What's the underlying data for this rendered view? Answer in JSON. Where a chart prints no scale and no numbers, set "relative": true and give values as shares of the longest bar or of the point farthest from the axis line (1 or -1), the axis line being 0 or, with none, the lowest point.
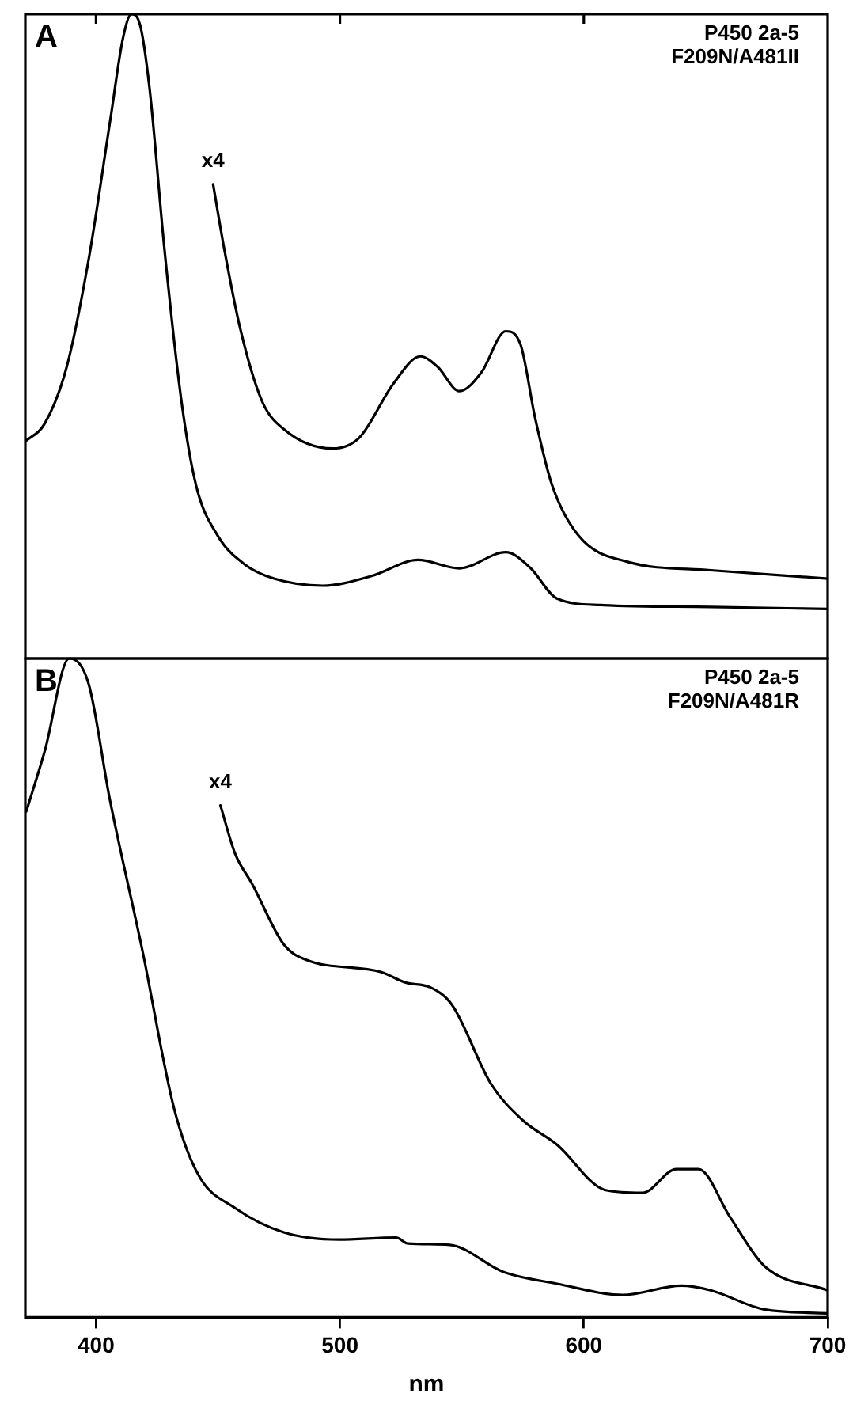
{
  "chart_data": [
    {
      "type": "line",
      "title": "A",
      "relative": true,
      "xlim": [
        371,
        700
      ],
      "xticks": [
        {
          "value": 400,
          "label": null
        },
        {
          "value": 500,
          "label": null
        },
        {
          "value": 600,
          "label": null
        }
      ],
      "tick_labels": false,
      "grid": false,
      "legend": false,
      "marker": "none",
      "line_style": "solid",
      "annotations": [
        "P450 2a-5\nF209N/A481II",
        {
          "text": "x4",
          "x": 448,
          "y": 0.736
        }
      ],
      "series": [
        {
          "color": "#000000",
          "x": [
            371,
            379,
            388,
            397,
            406,
            411,
            414.5,
            418,
            422,
            428,
            435,
            441,
            450,
            461,
            473,
            493,
            513,
            532,
            549,
            568,
            578,
            589,
            607,
            652,
            700
          ],
          "values": [
            0.337,
            0.365,
            0.453,
            0.62,
            0.84,
            0.962,
            1.0,
            0.984,
            0.883,
            0.637,
            0.4,
            0.269,
            0.19,
            0.146,
            0.124,
            0.113,
            0.128,
            0.153,
            0.14,
            0.165,
            0.141,
            0.093,
            0.083,
            0.08,
            0.077
          ]
        },
        {
          "color": "#000000",
          "x": [
            448,
            452.5,
            459,
            468,
            477,
            497,
            508,
            522,
            533,
            540,
            549,
            558,
            568,
            574,
            580,
            587,
            598,
            618,
            652,
            700
          ],
          "values": [
            0.736,
            0.637,
            0.514,
            0.4,
            0.356,
            0.326,
            0.343,
            0.427,
            0.469,
            0.453,
            0.415,
            0.444,
            0.508,
            0.488,
            0.374,
            0.269,
            0.19,
            0.15,
            0.137,
            0.124
          ]
        }
      ]
    },
    {
      "type": "line",
      "title": "B",
      "relative": true,
      "xlabel": "nm",
      "xlim": [
        371,
        700
      ],
      "xticks": [
        400,
        500,
        600,
        700
      ],
      "tick_labels": "x",
      "grid": false,
      "legend": false,
      "marker": "none",
      "line_style": "solid",
      "annotations": [
        "P450 2a-5\nF209N/A481R",
        {
          "text": "x4",
          "x": 451,
          "y": 0.777
        }
      ],
      "series": [
        {
          "color": "#000000",
          "x": [
            371.4,
            379,
            389,
            397,
            405.6,
            419,
            432,
            442,
            457,
            477,
            499.6,
            523,
            528,
            545,
            567,
            589,
            616,
            640,
            652,
            674,
            700
          ],
          "values": [
            0.768,
            0.86,
            1.0,
            0.961,
            0.787,
            0.557,
            0.317,
            0.216,
            0.166,
            0.129,
            0.118,
            0.121,
            0.112,
            0.11,
            0.069,
            0.051,
            0.034,
            0.048,
            0.041,
            0.012,
            0.006
          ]
        },
        {
          "color": "#000000",
          "x": [
            451,
            457,
            464,
            477,
            486,
            517,
            527,
            537,
            546,
            562,
            575,
            589,
            609,
            624,
            638,
            647,
            660,
            674,
            700
          ],
          "values": [
            0.777,
            0.704,
            0.658,
            0.566,
            0.543,
            0.524,
            0.508,
            0.501,
            0.474,
            0.354,
            0.299,
            0.262,
            0.193,
            0.189,
            0.225,
            0.225,
            0.152,
            0.078,
            0.041
          ]
        }
      ]
    }
  ]
}
